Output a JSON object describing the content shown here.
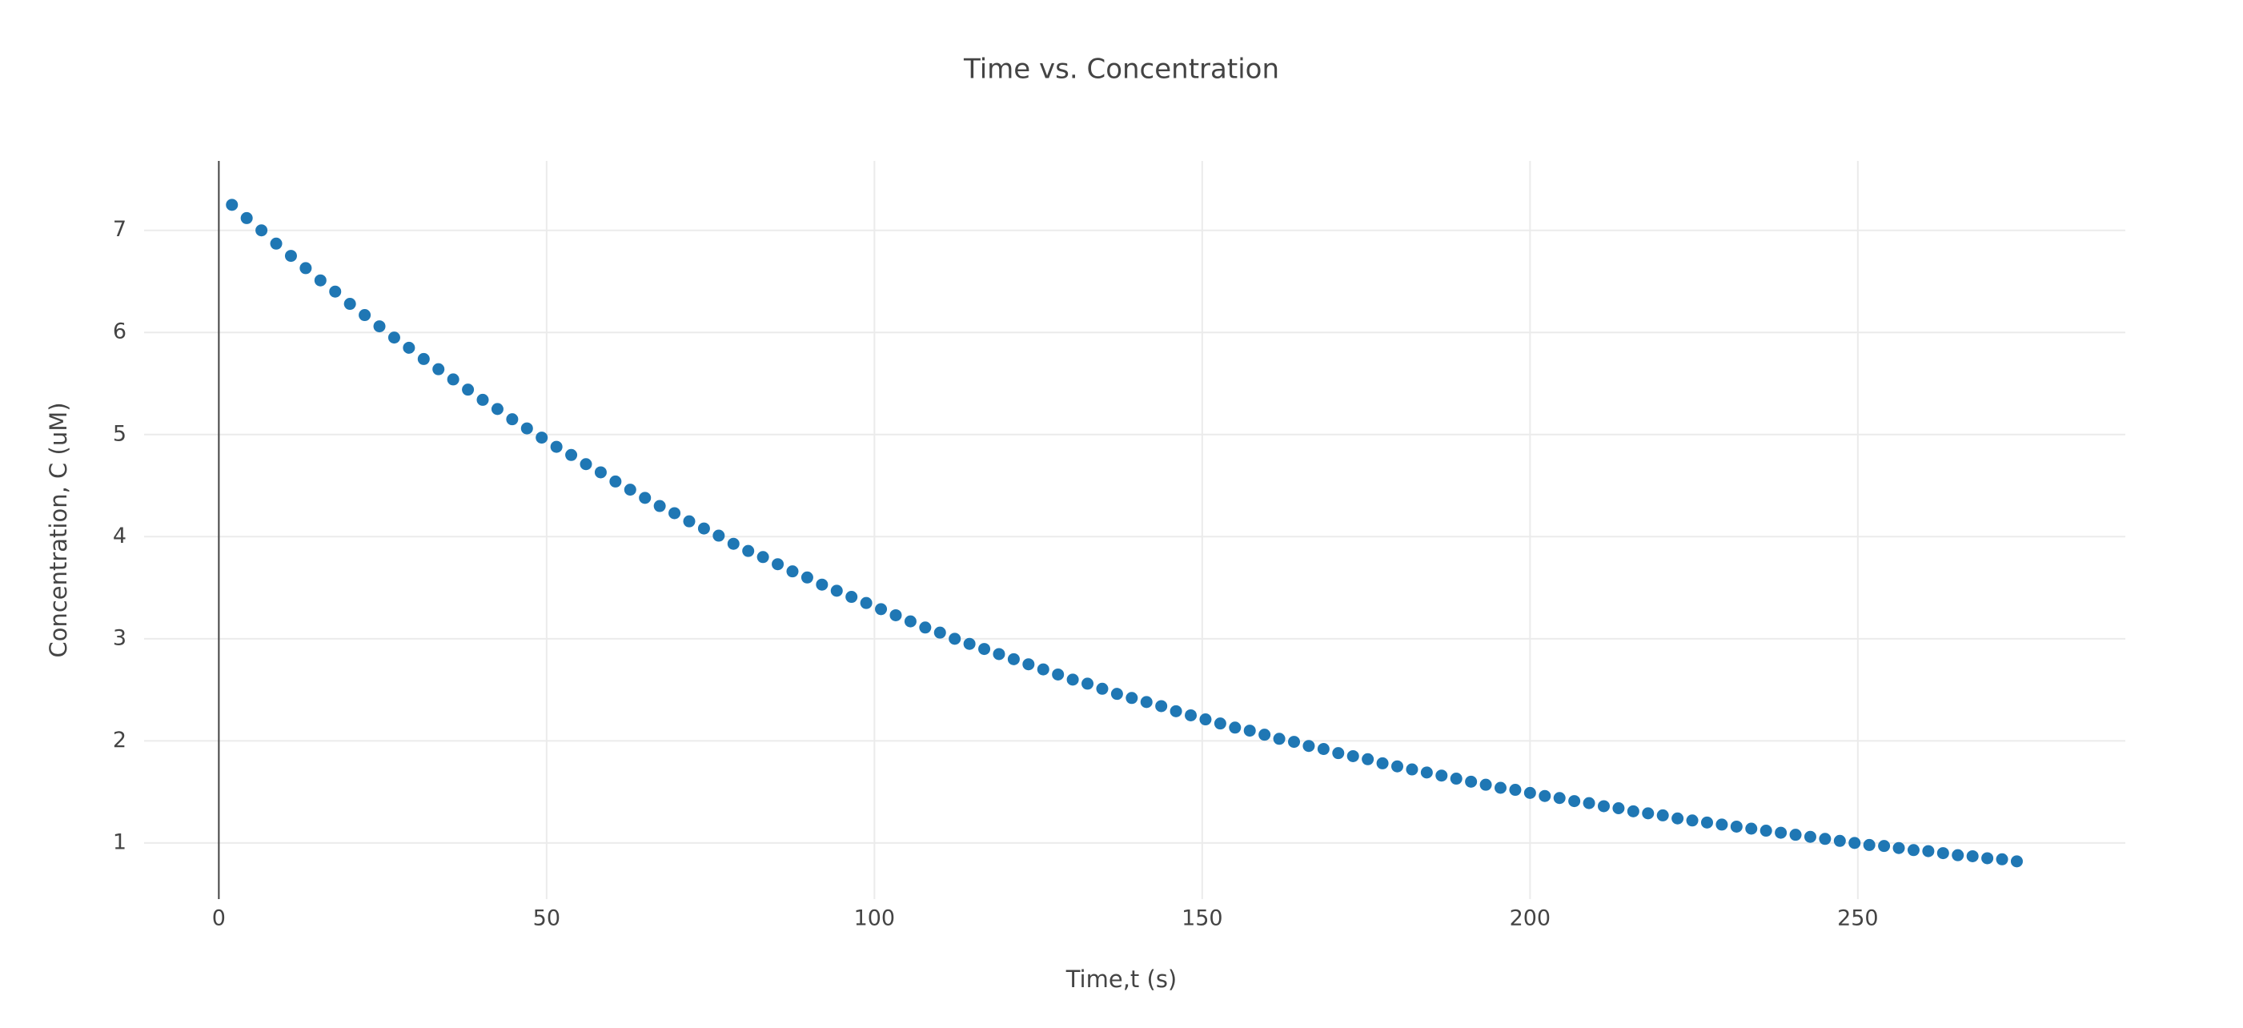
{
  "chart_data": {
    "type": "scatter",
    "title": "Time vs. Concentration",
    "x_label": "Time,t (s)",
    "y_label": "Concentration, C (uM)",
    "color": "#1f77b4",
    "x": [
      2,
      4.25,
      6.5,
      8.75,
      11,
      13.25,
      15.5,
      17.75,
      20,
      22.25,
      24.5,
      26.75,
      29,
      31.25,
      33.5,
      35.75,
      38,
      40.25,
      42.5,
      44.75,
      47,
      49.25,
      51.5,
      53.75,
      56,
      58.25,
      60.5,
      62.75,
      65,
      67.25,
      69.5,
      71.75,
      74,
      76.25,
      78.5,
      80.75,
      83,
      85.25,
      87.5,
      89.75,
      92,
      94.25,
      96.5,
      98.75,
      101,
      103.25,
      105.5,
      107.75,
      110,
      112.25,
      114.5,
      116.75,
      119,
      121.25,
      123.5,
      125.75,
      128,
      130.25,
      132.5,
      134.75,
      137,
      139.25,
      141.5,
      143.75,
      146,
      148.25,
      150.5,
      152.75,
      155,
      157.25,
      159.5,
      161.75,
      164,
      166.25,
      168.5,
      170.75,
      173,
      175.25,
      177.5,
      179.75,
      182,
      184.25,
      186.5,
      188.75,
      191,
      193.25,
      195.5,
      197.75,
      200,
      202.25,
      204.5,
      206.75,
      209,
      211.25,
      213.5,
      215.75,
      218,
      220.25,
      222.5,
      224.75,
      227,
      229.25,
      231.5,
      233.75,
      236,
      238.25,
      240.5,
      242.75,
      245,
      247.25,
      249.5,
      251.75,
      254,
      256.25,
      258.5,
      260.75,
      263,
      265.25,
      267.5,
      269.75,
      272,
      274.25
    ],
    "values": [
      7.25,
      7.12,
      7.0,
      6.87,
      6.75,
      6.63,
      6.51,
      6.4,
      6.28,
      6.17,
      6.06,
      5.95,
      5.85,
      5.74,
      5.64,
      5.54,
      5.44,
      5.34,
      5.25,
      5.15,
      5.06,
      4.97,
      4.88,
      4.8,
      4.71,
      4.63,
      4.54,
      4.46,
      4.38,
      4.3,
      4.23,
      4.15,
      4.08,
      4.01,
      3.93,
      3.86,
      3.8,
      3.73,
      3.66,
      3.6,
      3.53,
      3.47,
      3.41,
      3.35,
      3.29,
      3.23,
      3.17,
      3.11,
      3.06,
      3.0,
      2.95,
      2.9,
      2.85,
      2.8,
      2.75,
      2.7,
      2.65,
      2.6,
      2.56,
      2.51,
      2.46,
      2.42,
      2.38,
      2.34,
      2.29,
      2.25,
      2.21,
      2.17,
      2.13,
      2.1,
      2.06,
      2.02,
      1.99,
      1.95,
      1.92,
      1.88,
      1.85,
      1.82,
      1.78,
      1.75,
      1.72,
      1.69,
      1.66,
      1.63,
      1.6,
      1.57,
      1.54,
      1.52,
      1.49,
      1.46,
      1.44,
      1.41,
      1.39,
      1.36,
      1.34,
      1.31,
      1.29,
      1.27,
      1.24,
      1.22,
      1.2,
      1.18,
      1.16,
      1.14,
      1.12,
      1.1,
      1.08,
      1.06,
      1.04,
      1.02,
      1.0,
      0.98,
      0.97,
      0.95,
      0.93,
      0.92,
      0.9,
      0.88,
      0.87,
      0.85,
      0.84,
      0.82
    ],
    "xlim": [
      -11.4,
      290.8
    ],
    "xticks": [
      0,
      50,
      100,
      150,
      200,
      250
    ],
    "ylim": [
      0.45,
      7.68
    ],
    "yticks": [
      1,
      2,
      3,
      4,
      5,
      6,
      7
    ],
    "grid": true
  }
}
